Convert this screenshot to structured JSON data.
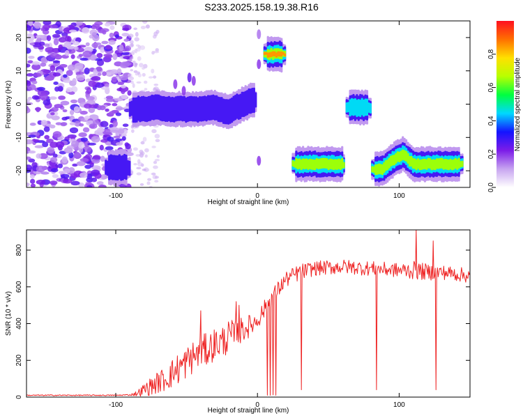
{
  "page_title": "S233.2025.158.19.38.R16",
  "chart_data": [
    {
      "type": "heatmap",
      "xlabel": "Height of straight line (km)",
      "ylabel": "Frequency (Hz)",
      "xlim": [
        -163,
        150
      ],
      "ylim": [
        -25,
        25
      ],
      "x_ticks": [
        -100,
        0,
        100
      ],
      "x_tick_labels": [
        "-100",
        "0",
        "100"
      ],
      "y_ticks": [
        -20,
        -10,
        0,
        10,
        20
      ],
      "y_tick_labels": [
        "-20",
        "-10",
        "0",
        "10",
        "20"
      ],
      "colorbar": {
        "label": "Normalized spectral amplitude",
        "range": [
          0,
          1
        ],
        "ticks": [
          0.0,
          0.2,
          0.4,
          0.6,
          0.8
        ],
        "tick_labels": [
          "0.0",
          "0.2",
          "0.4",
          "0.6",
          "0.8"
        ],
        "colors": [
          "#ffffff",
          "#c7a4f0",
          "#7c1ce8",
          "#1414ff",
          "#00d8ff",
          "#00ff40",
          "#b8ff00",
          "#ffe000",
          "#ff7000",
          "#ff1020"
        ]
      },
      "noise_region": {
        "x_range": [
          -163,
          -90
        ],
        "freq_range": [
          -25,
          25
        ],
        "level": 0.15
      },
      "ridges": [
        {
          "x": [
            -90,
            -80,
            -70,
            -60,
            -50,
            -40,
            -30,
            -20,
            -15,
            -10,
            -5,
            0
          ],
          "freq": [
            -1.5,
            -1.5,
            -1,
            -1.5,
            -1.5,
            -1.5,
            -1,
            -2.5,
            -1,
            0,
            1,
            1
          ],
          "amp": 0.35
        },
        {
          "x": [
            5,
            20
          ],
          "freq": [
            15,
            15
          ],
          "amp": 0.85
        },
        {
          "x": [
            25,
            62
          ],
          "freq": [
            -18,
            -18
          ],
          "amp": 0.75
        },
        {
          "x": [
            63,
            80
          ],
          "freq": [
            -1,
            -1
          ],
          "amp": 0.55
        },
        {
          "x": [
            81,
            88,
            95,
            103,
            110,
            120,
            130,
            145
          ],
          "freq": [
            -19.5,
            -19.5,
            -17,
            -15,
            -18,
            -18,
            -18,
            -18
          ],
          "amp": 0.65
        },
        {
          "x": [
            -107,
            -90
          ],
          "freq": [
            -19,
            -19
          ],
          "amp": 0.35
        }
      ],
      "blobs": [
        {
          "x": 1,
          "freq": 21,
          "amp": 0.15
        },
        {
          "x": 1,
          "freq": 12,
          "amp": 0.2
        },
        {
          "x": 1,
          "freq": -17,
          "amp": 0.2
        },
        {
          "x": -58,
          "freq": 6,
          "amp": 0.2
        },
        {
          "x": -52,
          "freq": 4,
          "amp": 0.2
        },
        {
          "x": -48,
          "freq": 8,
          "amp": 0.25
        },
        {
          "x": -45,
          "freq": 7,
          "amp": 0.2
        }
      ]
    },
    {
      "type": "line",
      "xlabel": "Height of straight line (km)",
      "ylabel": "SNR (10 * v/v)",
      "xlim": [
        -163,
        150
      ],
      "ylim": [
        0,
        910
      ],
      "x_ticks": [
        -100,
        0,
        100
      ],
      "x_tick_labels": [
        "-100",
        "0",
        "100"
      ],
      "y_ticks": [
        0,
        200,
        400,
        600,
        800
      ],
      "y_tick_labels": [
        "0",
        "200",
        "400",
        "600",
        "800"
      ],
      "line_color": "#ee2222",
      "series": [
        {
          "x": [
            -163,
            -140,
            -120,
            -100,
            -90,
            -85,
            -80,
            -75,
            -70,
            -65,
            -60,
            -55,
            -50,
            -45,
            -40,
            -35,
            -30,
            -25,
            -20,
            -15,
            -10,
            -5,
            0,
            5,
            10,
            15,
            20,
            30,
            40,
            60,
            80,
            100,
            110,
            120,
            130,
            140,
            150
          ],
          "y": [
            10,
            10,
            10,
            10,
            12,
            20,
            40,
            60,
            80,
            100,
            130,
            160,
            190,
            220,
            250,
            260,
            290,
            300,
            330,
            340,
            370,
            390,
            420,
            480,
            540,
            590,
            640,
            680,
            700,
            710,
            700,
            690,
            690,
            680,
            680,
            670,
            660
          ],
          "noise_amplitude": [
            3,
            3,
            3,
            3,
            4,
            15,
            35,
            50,
            60,
            70,
            80,
            90,
            90,
            90,
            90,
            90,
            90,
            90,
            90,
            80,
            70,
            60,
            50,
            50,
            50,
            45,
            45,
            45,
            40,
            40,
            40,
            40,
            50,
            45,
            40,
            40,
            40
          ]
        }
      ],
      "spikes": [
        {
          "x": -40,
          "y": 470
        },
        {
          "x": -15,
          "y": 520
        },
        {
          "x": -13,
          "y": 500
        },
        {
          "x": 112,
          "y": 910
        },
        {
          "x": 124,
          "y": 850
        }
      ],
      "dropouts": [
        {
          "x": 7,
          "y": 10
        },
        {
          "x": 9,
          "y": 10
        },
        {
          "x": 11,
          "y": 12
        },
        {
          "x": 13,
          "y": 10
        },
        {
          "x": 31,
          "y": 40
        },
        {
          "x": 84,
          "y": 40
        },
        {
          "x": 126,
          "y": 40
        }
      ]
    }
  ]
}
